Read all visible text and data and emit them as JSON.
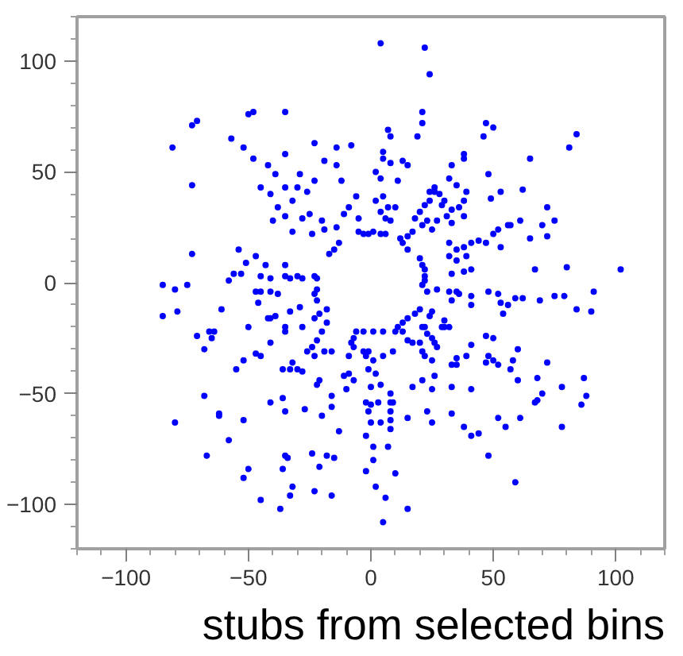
{
  "chart_data": {
    "type": "scatter",
    "xlim": [
      -120,
      120
    ],
    "ylim": [
      -120,
      120
    ],
    "xticks": [
      -100,
      -50,
      0,
      50,
      100
    ],
    "yticks": [
      -100,
      -50,
      0,
      50,
      100
    ],
    "grid": false,
    "marker": "circle",
    "annotations": [
      "stubs from selected bins"
    ],
    "series": [
      {
        "color": "#0000ff",
        "x": [
          -81,
          -73,
          -71,
          -73,
          -73,
          -57,
          -50,
          -48,
          -35,
          -52,
          -48,
          -35,
          -42,
          -39,
          -45,
          -35,
          -41,
          -29,
          -30,
          -26,
          -23,
          -23,
          -19,
          -38,
          -35,
          -40,
          -32,
          -28,
          -25,
          -20,
          -19,
          -24,
          -17,
          -32,
          -54,
          -47,
          -51,
          -43,
          -35,
          -56,
          -53,
          -45,
          -41,
          -35,
          -33,
          -30,
          -28,
          -23,
          -22,
          -58,
          -85,
          -80,
          -75,
          4,
          22,
          24,
          21,
          21,
          19,
          7,
          8,
          47,
          50,
          46,
          84,
          81,
          -8,
          -14,
          -14,
          5,
          5,
          8,
          13,
          15,
          2,
          4,
          11,
          -12,
          33,
          38,
          38,
          65,
          48,
          35,
          32,
          26,
          24,
          28,
          39,
          53,
          62,
          49,
          72,
          75,
          61,
          57,
          70,
          65,
          72,
          30,
          29,
          38,
          33,
          5,
          7,
          10,
          2,
          4,
          6,
          8,
          1,
          4,
          6,
          -6,
          -9,
          -11,
          -5,
          -5,
          -14,
          18,
          20,
          22,
          24,
          26,
          21,
          23,
          25,
          27,
          17,
          15,
          12,
          13,
          15,
          20,
          21,
          22,
          22,
          32,
          35,
          38,
          41,
          44,
          47,
          50,
          52,
          32,
          35,
          39,
          33,
          38,
          41,
          53,
          56,
          67,
          80,
          102,
          33,
          31,
          38,
          36,
          -13,
          -15,
          22,
          -3,
          -1,
          -85,
          -79,
          -61,
          -71,
          -66,
          -64,
          -65,
          -68,
          -68,
          -80,
          -62,
          -62,
          -67,
          -58,
          -52,
          -55,
          -52,
          -50,
          -46,
          -47,
          -45,
          -41,
          -38,
          -41,
          -39,
          -42,
          -33,
          -29,
          -45,
          -47,
          -41,
          -35,
          -36,
          -33,
          -32,
          -30,
          -28,
          -41,
          -36,
          -35,
          -35,
          -34,
          -36,
          -32,
          -52,
          -50,
          -45,
          -37,
          -33,
          -24,
          -23,
          -21,
          -18,
          -16,
          -27,
          -20,
          -22,
          -21,
          -16,
          -16,
          -28,
          -24,
          -22,
          -20,
          -18,
          -26,
          -23,
          -19,
          -16,
          -23,
          -21,
          -18,
          -23,
          -22,
          -22,
          -35,
          21,
          23,
          27,
          32,
          35,
          36,
          41,
          41,
          48,
          52,
          53,
          56,
          59,
          62,
          69,
          75,
          79,
          91,
          84,
          90,
          33,
          54,
          20,
          18,
          15,
          13,
          11,
          5,
          1,
          -3,
          -6,
          -8,
          -7,
          -9,
          -11,
          -2,
          -1,
          0,
          -2,
          0,
          -1,
          3,
          0,
          -2,
          1,
          7,
          1,
          -2,
          2,
          10,
          6,
          15,
          5,
          8,
          8,
          8,
          8,
          4,
          15,
          -13,
          -15,
          23,
          25,
          17,
          21,
          25,
          33,
          38,
          41,
          44,
          52,
          55,
          61,
          78,
          48,
          59,
          33,
          41,
          60,
          68,
          70,
          68,
          67,
          78,
          87,
          88,
          86,
          72,
          57,
          60,
          58,
          52,
          47,
          48,
          50,
          47,
          50,
          41,
          39,
          35,
          33,
          35,
          26,
          27,
          25,
          23,
          22,
          21,
          30,
          30,
          29,
          32,
          24,
          25,
          13,
          10,
          20,
          21,
          22,
          25,
          26,
          15,
          17,
          9,
          5,
          1,
          -1,
          -3,
          2,
          4,
          8,
          9,
          -9,
          -7,
          -10,
          -7
        ],
        "values": [
          61,
          71,
          73,
          44,
          13,
          65,
          76,
          77,
          77,
          61,
          56,
          58,
          53,
          49,
          43,
          43,
          40,
          49,
          43,
          41,
          46,
          63,
          55,
          34,
          30,
          28,
          37,
          29,
          31,
          28,
          24,
          22,
          13,
          23,
          15,
          12,
          9,
          8,
          8,
          4,
          4,
          3,
          2,
          3,
          2,
          3,
          2,
          3,
          2,
          1,
          -1,
          -3,
          -1,
          108,
          106,
          94,
          77,
          72,
          66,
          69,
          66,
          72,
          70,
          66,
          67,
          61,
          62,
          61,
          53,
          59,
          56,
          54,
          55,
          53,
          50,
          47,
          46,
          46,
          53,
          58,
          56,
          56,
          49,
          44,
          47,
          43,
          41,
          40,
          41,
          41,
          42,
          38,
          34,
          28,
          28,
          26,
          26,
          20,
          21,
          37,
          35,
          37,
          33,
          39,
          34,
          34,
          37,
          32,
          29,
          28,
          23,
          22,
          22,
          39,
          34,
          31,
          29,
          23,
          25,
          29,
          32,
          35,
          37,
          41,
          26,
          28,
          24,
          28,
          23,
          21,
          20,
          18,
          15,
          11,
          8,
          6,
          3,
          18,
          15,
          16,
          18,
          19,
          18,
          22,
          24,
          12,
          10,
          12,
          4,
          5,
          6,
          16,
          26,
          6,
          7,
          6,
          27,
          30,
          30,
          34,
          18,
          15,
          1,
          22,
          22,
          -15,
          -13,
          -12,
          -24,
          -22,
          -22,
          -25,
          -30,
          -51,
          -63,
          -59,
          -60,
          -78,
          -71,
          -62,
          -39,
          -35,
          -20,
          -9,
          -4,
          -4,
          -4,
          -5,
          -16,
          -15,
          -16,
          -13,
          -11,
          -33,
          -32,
          -27,
          -22,
          -39,
          -39,
          -36,
          -39,
          -40,
          -54,
          -52,
          -58,
          -78,
          -79,
          -84,
          -92,
          -88,
          -84,
          -98,
          -102,
          -96,
          -77,
          -94,
          -83,
          -78,
          -96,
          -57,
          -60,
          -46,
          -44,
          -56,
          -51,
          -20,
          -29,
          -26,
          -22,
          -18,
          -31,
          -33,
          -31,
          -31,
          -16,
          -14,
          -12,
          -5,
          -8,
          -3,
          -20,
          -1,
          -4,
          -3,
          -4,
          -4,
          -5,
          -6,
          -10,
          -4,
          -5,
          -9,
          -10,
          -7,
          -7,
          -8,
          -6,
          -6,
          -4,
          -12,
          -13,
          -8,
          -14,
          -12,
          -14,
          -16,
          -18,
          -20,
          -22,
          -22,
          -22,
          -22,
          -27,
          -29,
          -33,
          -42,
          -33,
          -39,
          -47,
          -54,
          -55,
          -58,
          -54,
          -63,
          -69,
          -74,
          -74,
          -80,
          -85,
          -92,
          -86,
          -97,
          -102,
          -108,
          -66,
          -62,
          -58,
          -54,
          -63,
          -61,
          -67,
          -79,
          -58,
          -63,
          -47,
          -44,
          -48,
          -59,
          -65,
          -69,
          -68,
          -61,
          -65,
          -61,
          -65,
          -78,
          -90,
          -47,
          -48,
          -44,
          -43,
          -50,
          -53,
          -54,
          -47,
          -43,
          -51,
          -55,
          -36,
          -39,
          -30,
          -35,
          -37,
          -36,
          -33,
          -35,
          -24,
          -25,
          -28,
          -33,
          -34,
          -37,
          -37,
          -27,
          -29,
          -25,
          -23,
          -20,
          -20,
          -17,
          -20,
          -20,
          -20,
          -15,
          -13,
          -22,
          -22,
          -27,
          -31,
          -33,
          -35,
          -42,
          -26,
          -27,
          -31,
          -33,
          -35,
          -31,
          -31,
          -41,
          -46,
          -50,
          -54,
          -41,
          -44,
          -48,
          -25
        ]
      }
    ]
  }
}
